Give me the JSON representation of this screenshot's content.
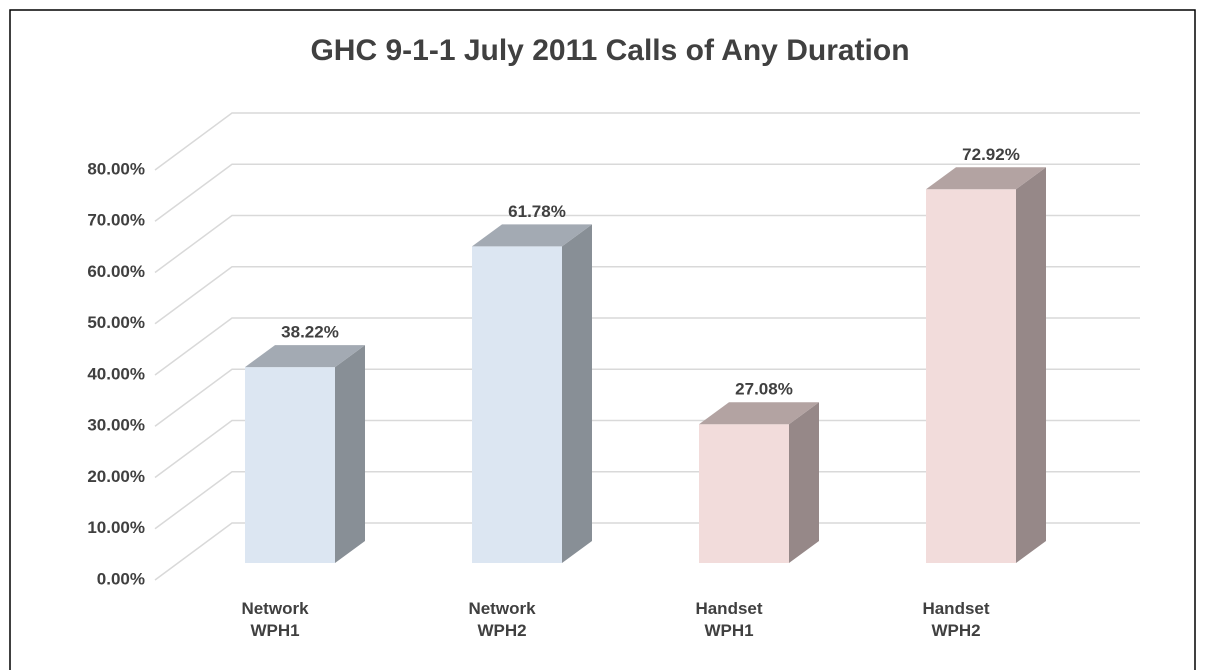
{
  "chart_data": {
    "type": "bar3d",
    "title": "GHC 9-1-1 July 2011 Calls of Any Duration",
    "categories": [
      "Network\nWPH1",
      "Network\nWPH2",
      "Handset\nWPH1",
      "Handset\nWPH2"
    ],
    "values": [
      38.22,
      61.78,
      27.08,
      72.92
    ],
    "value_labels": [
      "38.22%",
      "61.78%",
      "27.08%",
      "72.92%"
    ],
    "colors": [
      "#dce6f2",
      "#dce6f2",
      "#f2dcdb",
      "#f2dcdb"
    ],
    "ylim": [
      0,
      80
    ],
    "yticks": [
      {
        "value": 0,
        "label": "0.00%"
      },
      {
        "value": 10,
        "label": "10.00%"
      },
      {
        "value": 20,
        "label": "20.00%"
      },
      {
        "value": 30,
        "label": "30.00%"
      },
      {
        "value": 40,
        "label": "40.00%"
      },
      {
        "value": 50,
        "label": "50.00%"
      },
      {
        "value": 60,
        "label": "60.00%"
      },
      {
        "value": 70,
        "label": "70.00%"
      },
      {
        "value": 80,
        "label": "80.00%"
      }
    ],
    "grid": true
  }
}
